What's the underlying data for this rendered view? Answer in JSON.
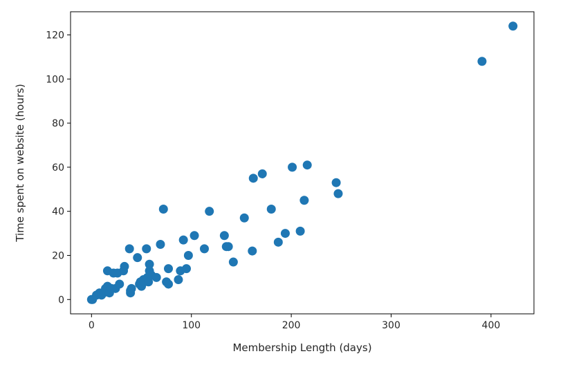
{
  "chart_data": {
    "type": "scatter",
    "title": "",
    "xlabel": "Membership Length (days)",
    "ylabel": "Time spent on website (hours)",
    "xlim": [
      -21,
      443
    ],
    "ylim": [
      -6.5,
      130.5
    ],
    "xticks": [
      0,
      100,
      200,
      300,
      400
    ],
    "yticks": [
      0,
      20,
      40,
      60,
      80,
      100,
      120
    ],
    "xtick_labels": [
      "0",
      "100",
      "200",
      "300",
      "400"
    ],
    "ytick_labels": [
      "0",
      "20",
      "40",
      "60",
      "80",
      "100",
      "120"
    ],
    "grid": false,
    "legend": "none",
    "point_color": "#1f77b4",
    "series": [
      {
        "points": [
          [
            0,
            0
          ],
          [
            1,
            0
          ],
          [
            5,
            2
          ],
          [
            8,
            3
          ],
          [
            10,
            2
          ],
          [
            12,
            3
          ],
          [
            14,
            5
          ],
          [
            15,
            4
          ],
          [
            16,
            6
          ],
          [
            16,
            13
          ],
          [
            18,
            3
          ],
          [
            20,
            5
          ],
          [
            22,
            12
          ],
          [
            24,
            5
          ],
          [
            26,
            12
          ],
          [
            28,
            7
          ],
          [
            32,
            13
          ],
          [
            33,
            15
          ],
          [
            38,
            23
          ],
          [
            39,
            4
          ],
          [
            39,
            3
          ],
          [
            40,
            5
          ],
          [
            46,
            19
          ],
          [
            48,
            7
          ],
          [
            49,
            8
          ],
          [
            50,
            6
          ],
          [
            52,
            9
          ],
          [
            53,
            8
          ],
          [
            55,
            23
          ],
          [
            56,
            10
          ],
          [
            57,
            8
          ],
          [
            58,
            13
          ],
          [
            58,
            16
          ],
          [
            60,
            11
          ],
          [
            65,
            10
          ],
          [
            69,
            25
          ],
          [
            72,
            41
          ],
          [
            75,
            8
          ],
          [
            77,
            7
          ],
          [
            77,
            14
          ],
          [
            87,
            9
          ],
          [
            89,
            13
          ],
          [
            92,
            27
          ],
          [
            95,
            14
          ],
          [
            97,
            20
          ],
          [
            103,
            29
          ],
          [
            113,
            23
          ],
          [
            118,
            40
          ],
          [
            133,
            29
          ],
          [
            135,
            24
          ],
          [
            137,
            24
          ],
          [
            142,
            17
          ],
          [
            153,
            37
          ],
          [
            161,
            22
          ],
          [
            162,
            55
          ],
          [
            171,
            57
          ],
          [
            180,
            41
          ],
          [
            187,
            26
          ],
          [
            194,
            30
          ],
          [
            201,
            60
          ],
          [
            209,
            31
          ],
          [
            213,
            45
          ],
          [
            216,
            61
          ],
          [
            245,
            53
          ],
          [
            247,
            48
          ],
          [
            391,
            108
          ],
          [
            422,
            124
          ]
        ]
      }
    ]
  }
}
